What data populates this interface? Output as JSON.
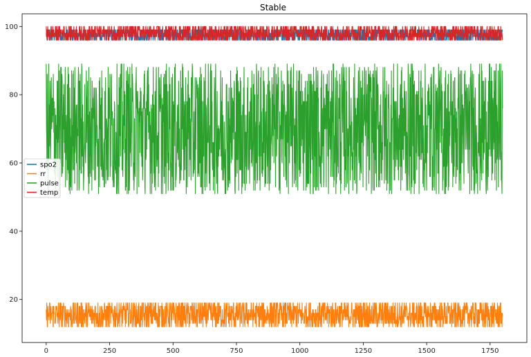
{
  "chart_data": {
    "type": "line",
    "title": "Stable",
    "xlabel": "",
    "ylabel": "",
    "xlim": [
      -95,
      1895
    ],
    "ylim": [
      7.4,
      103.7
    ],
    "x_ticks": [
      0,
      250,
      500,
      750,
      1000,
      1250,
      1500,
      1750
    ],
    "y_ticks": [
      20,
      40,
      60,
      80,
      100
    ],
    "grid": false,
    "legend_position": "center-left",
    "n_points": 1800,
    "series": [
      {
        "name": "spo2",
        "color": "#1f77b4",
        "min": 96,
        "max": 99
      },
      {
        "name": "rr",
        "color": "#ff7f0e",
        "min": 12,
        "max": 19
      },
      {
        "name": "pulse",
        "color": "#2ca02c",
        "min": 51,
        "max": 89
      },
      {
        "name": "temp",
        "color": "#d62728",
        "min": 96,
        "max": 100
      }
    ]
  }
}
